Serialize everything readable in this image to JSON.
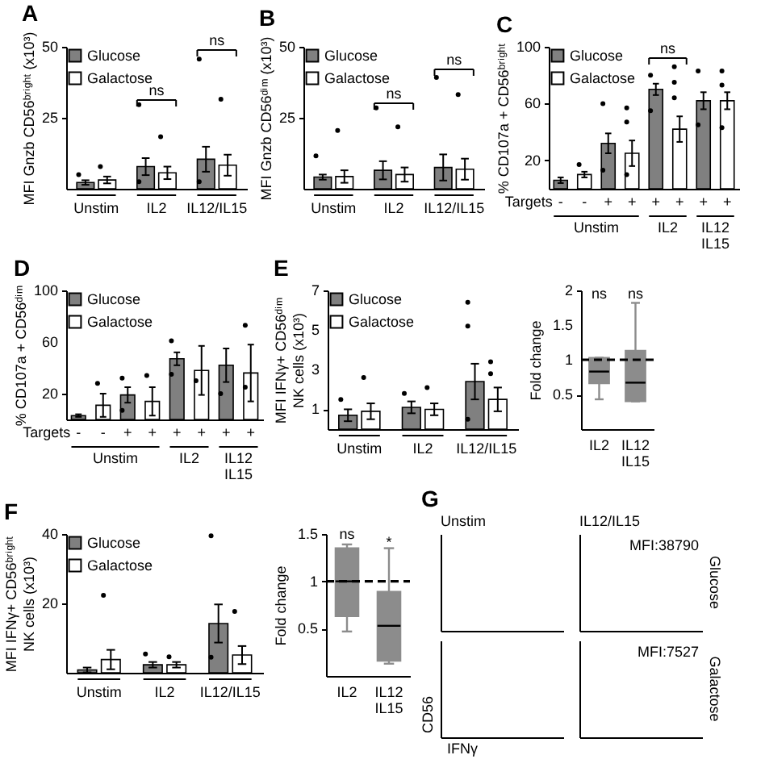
{
  "chart_data": [
    {
      "type": "bar",
      "title": "A",
      "ylabel": "MFI  Gnzb CD56ᵇʳⁱᵍʰᵗ (x10³)",
      "categories": [
        "Unstim",
        "IL2",
        "IL12/IL15"
      ],
      "series": [
        {
          "name": "Glucose",
          "color": "#808080",
          "values": [
            2.2,
            7.8,
            10.4
          ],
          "errors": [
            0.8,
            3.0,
            4.4
          ]
        },
        {
          "name": "Galactose",
          "color": "#ffffff",
          "values": [
            3.1,
            5.6,
            8.3
          ],
          "errors": [
            1.2,
            2.2,
            3.7
          ]
        },
        {
          "type": "scatter",
          "color": "#000000",
          "x": [
            "Unstim",
            "IL2",
            "IL2",
            "IL12/IL15",
            "IL12/IL15"
          ],
          "values": [
            5,
            2.5,
            29.6,
            2.5,
            45.7
          ]
        },
        {
          "type": "scatter",
          "color": "#000000",
          "x": [
            "Unstim",
            "IL2",
            "IL12/IL15"
          ],
          "values": [
            7.8,
            18.3,
            31.5
          ]
        }
      ],
      "ylim": [
        0,
        50
      ],
      "yticks": [
        25,
        50
      ],
      "legend": "top left",
      "marker": "circle",
      "annotations": [
        "ns",
        "ns"
      ]
    },
    {
      "type": "bar",
      "title": "B",
      "ylabel": "MFI  Gnzb CD56ᵈⁱᵐ (x10³)",
      "categories": [
        "Unstim",
        "IL2",
        "IL12/IL15"
      ],
      "series": [
        {
          "name": "Glucose",
          "color": "#808080",
          "values": [
            4.1,
            6.5,
            7.5
          ],
          "errors": [
            0.9,
            3.2,
            4.6
          ]
        },
        {
          "name": "Galactose",
          "color": "#ffffff",
          "values": [
            4.3,
            5.0,
            6.9
          ],
          "errors": [
            2.2,
            2.5,
            3.7
          ]
        },
        {
          "type": "scatter",
          "color": "#000000",
          "x": [
            "Unstim",
            "IL2",
            "IL12/IL15"
          ],
          "values": [
            11.6,
            28.5,
            39.2
          ]
        },
        {
          "type": "scatter",
          "color": "#000000",
          "x": [
            "Unstim",
            "IL2",
            "IL12/IL15"
          ],
          "values": [
            20.5,
            21.8,
            33.2
          ]
        }
      ],
      "ylim": [
        0,
        50
      ],
      "yticks": [
        25,
        50
      ],
      "legend": "top left",
      "marker": "circle",
      "annotations": [
        "ns",
        "ns"
      ]
    },
    {
      "type": "bar",
      "title": "C",
      "ylabel": "% CD107a + CD56ᵇʳⁱᵍʰᵗ",
      "categories": [
        "-",
        "-",
        "+",
        "+",
        "+",
        "+",
        "+",
        "+"
      ],
      "series": [
        {
          "name": "Glucose",
          "color": "#808080",
          "values": [
            6,
            null,
            32,
            null,
            70,
            null,
            62,
            null
          ],
          "errors": [
            2,
            null,
            7,
            null,
            4,
            null,
            6,
            null
          ]
        },
        {
          "name": "Galactose",
          "color": "#ffffff",
          "values": [
            null,
            10,
            null,
            25,
            null,
            42,
            null,
            62
          ],
          "errors": [
            null,
            2,
            null,
            9,
            null,
            9,
            null,
            6
          ]
        },
        {
          "type": "scatter",
          "color": "#000000",
          "values": [
            null,
            17,
            13,
            10,
            55,
            64,
            45,
            43
          ]
        },
        {
          "type": "scatter",
          "color": "#000000",
          "values": [
            null,
            null,
            60,
            47,
            80,
            75,
            83,
            73
          ]
        },
        {
          "type": "scatter",
          "color": "#000000",
          "values": [
            null,
            null,
            null,
            57,
            null,
            86,
            null,
            83
          ]
        }
      ],
      "ylim": [
        0,
        100
      ],
      "yticks": [
        20,
        60,
        100
      ],
      "legend": "top left",
      "marker": "circle",
      "annotations": [
        "Targets",
        "Unstim",
        "IL2",
        "IL12\nIL15",
        "ns"
      ]
    },
    {
      "type": "bar",
      "title": "D",
      "ylabel": "% CD107a + CD56ᵈⁱᵐ",
      "categories": [
        "-",
        "-",
        "+",
        "+",
        "+",
        "+",
        "+",
        "+"
      ],
      "series": [
        {
          "name": "Glucose",
          "color": "#808080",
          "values": [
            3,
            null,
            19,
            null,
            47,
            null,
            42,
            null
          ],
          "errors": [
            1,
            null,
            6,
            null,
            5,
            null,
            13,
            null
          ]
        },
        {
          "name": "Galactose",
          "color": "#ffffff",
          "values": [
            null,
            11,
            null,
            14,
            null,
            38,
            null,
            36
          ],
          "errors": [
            null,
            9,
            null,
            11,
            null,
            19,
            null,
            22
          ]
        },
        {
          "type": "scatter",
          "color": "#000000",
          "values": [
            null,
            28,
            7,
            34,
            35,
            30,
            20,
            25
          ]
        },
        {
          "type": "scatter",
          "color": "#000000",
          "values": [
            null,
            null,
            32,
            null,
            61,
            null,
            null,
            73
          ]
        }
      ],
      "ylim": [
        0,
        100
      ],
      "yticks": [
        20,
        60,
        100
      ],
      "legend": "top left",
      "marker": "circle",
      "annotations": [
        "Targets",
        "Unstim",
        "IL2",
        "IL12\nIL15"
      ]
    },
    {
      "type": "bar",
      "title": "E",
      "ylabel": "MFI  IFNγ+ CD56ᵈⁱᵐ\nNK cells (x10³)",
      "categories": [
        "Unstim",
        "IL2",
        "IL12/IL15"
      ],
      "series": [
        {
          "name": "Glucose",
          "color": "#808080",
          "values": [
            0.7,
            1.1,
            2.4
          ],
          "errors": [
            0.3,
            0.3,
            0.9
          ]
        },
        {
          "name": "Galactose",
          "color": "#ffffff",
          "values": [
            0.9,
            1.0,
            1.5
          ],
          "errors": [
            0.4,
            0.3,
            0.6
          ]
        },
        {
          "type": "scatter",
          "color": "#000000",
          "x": [
            "Unstim",
            "IL2",
            "IL12/IL15",
            "IL12/IL15",
            "IL12/IL15"
          ],
          "values": [
            1.5,
            1.8,
            0.5,
            5.2,
            6.4
          ]
        },
        {
          "type": "scatter",
          "color": "#000000",
          "x": [
            "Unstim",
            "IL2",
            "IL12/IL15",
            "IL12/IL15"
          ],
          "values": [
            2.6,
            2.1,
            2.8,
            3.4
          ]
        }
      ],
      "ylim": [
        0,
        7
      ],
      "yticks": [
        1,
        3,
        5,
        7
      ],
      "legend": "top left",
      "marker": "circle"
    },
    {
      "type": "box",
      "ylabel": "Fold change",
      "categories": [
        "IL2",
        "IL12\nIL15"
      ],
      "series": [
        {
          "color": "#8c8c8c",
          "boxes": [
            {
              "low": 0.43,
              "q1": 0.66,
              "median": 0.83,
              "q3": 1.03,
              "high": 1.03
            },
            {
              "low": 0.4,
              "q1": 0.4,
              "median": 0.67,
              "q3": 1.13,
              "high": 1.82
            }
          ]
        }
      ],
      "ylim": [
        0,
        2
      ],
      "yticks": [
        0.5,
        1,
        1.5,
        2
      ],
      "ref_lines": [
        {
          "axis": "y",
          "value": 1,
          "color": "#000000",
          "line_style": "dashed"
        }
      ],
      "annotations": [
        "ns",
        "ns"
      ]
    },
    {
      "type": "bar",
      "title": "F",
      "ylabel": "MFI  IFNγ+ CD56ᵇʳⁱᵍʰᵗ\nNK cells (x10³)",
      "categories": [
        "Unstim",
        "IL2",
        "IL12/IL15"
      ],
      "series": [
        {
          "name": "Glucose",
          "color": "#808080",
          "values": [
            0.8,
            2.3,
            14.2
          ],
          "errors": [
            0.7,
            0.8,
            5.5
          ]
        },
        {
          "name": "Galactose",
          "color": "#ffffff",
          "values": [
            3.8,
            2.3,
            5.1
          ],
          "errors": [
            2.8,
            0.8,
            2.6
          ]
        },
        {
          "type": "scatter",
          "color": "#000000",
          "x": [
            "IL2",
            "IL12/IL15",
            "IL12/IL15"
          ],
          "values": [
            5.4,
            4.5,
            39.5
          ]
        },
        {
          "type": "scatter",
          "color": "#000000",
          "x": [
            "Unstim",
            "IL2",
            "IL12/IL15"
          ],
          "values": [
            22.3,
            4.6,
            17.7
          ]
        }
      ],
      "ylim": [
        0,
        40
      ],
      "yticks": [
        20,
        40
      ],
      "legend": "top left",
      "marker": "circle"
    },
    {
      "type": "box",
      "ylabel": "Fold change",
      "categories": [
        "IL2",
        "IL12\nIL15"
      ],
      "series": [
        {
          "color": "#8c8c8c",
          "boxes": [
            {
              "low": 0.47,
              "q1": 0.63,
              "median": 1.0,
              "q3": 1.35,
              "high": 1.39
            },
            {
              "low": 0.13,
              "q1": 0.16,
              "median": 0.53,
              "q3": 0.89,
              "high": 1.35
            }
          ]
        }
      ],
      "ylim": [
        0,
        1.5
      ],
      "yticks": [
        0.5,
        1,
        1.5
      ],
      "ref_lines": [
        {
          "axis": "y",
          "value": 1,
          "color": "#000000",
          "line_style": "dashed"
        }
      ],
      "annotations": [
        "ns",
        "*"
      ]
    },
    {
      "type": "other",
      "title": "G",
      "xlabel": "IFNγ",
      "ylabel": "CD56",
      "annotations": [
        "Unstim",
        "IL12/IL15",
        "Glucose",
        "Galactose",
        "MFI:38790",
        "MFI:7527"
      ]
    }
  ]
}
